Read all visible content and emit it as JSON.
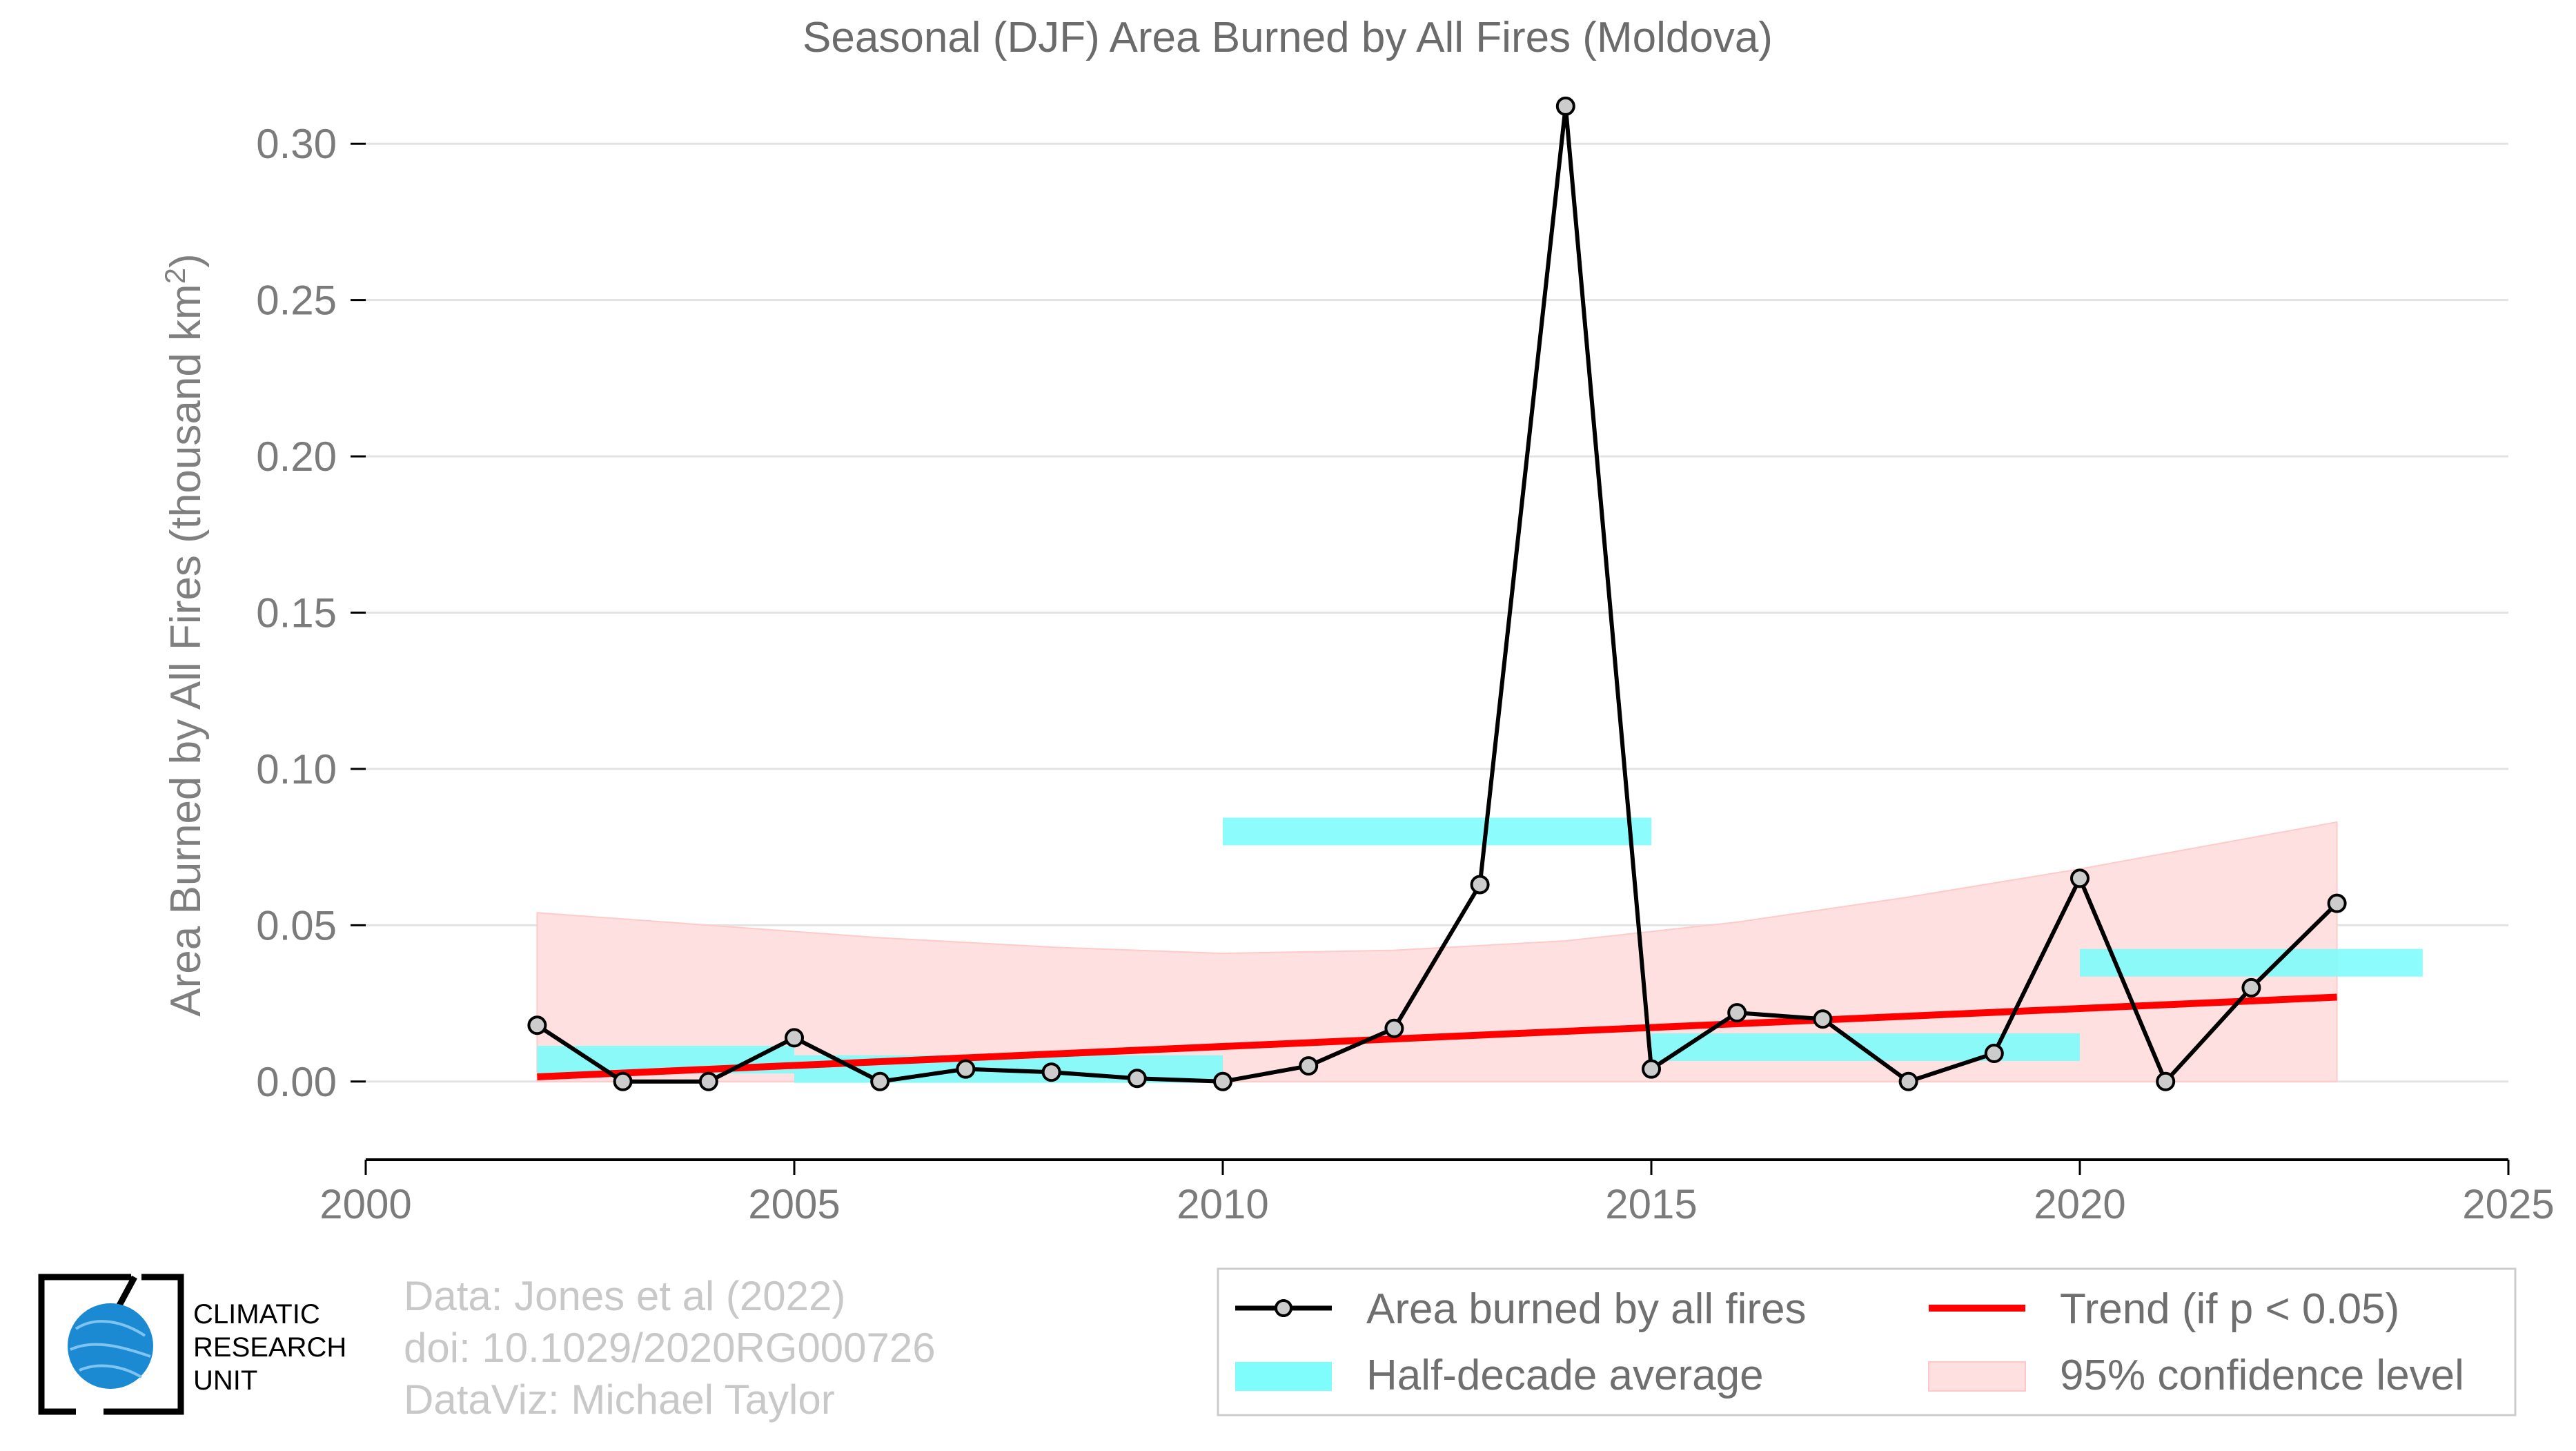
{
  "chart_data": {
    "type": "line",
    "title": "Seasonal (DJF) Area Burned by All Fires (Moldova)",
    "ylabel": "Area Burned by All Fires (thousand km²)",
    "xlim": [
      2000,
      2025
    ],
    "ylim": [
      -0.025,
      0.325
    ],
    "xticks": [
      "2000",
      "2005",
      "2010",
      "2015",
      "2020",
      "2025"
    ],
    "yticks": [
      "0.00",
      "0.05",
      "0.10",
      "0.15",
      "0.20",
      "0.25",
      "0.30"
    ],
    "grid": "horizontal",
    "series": [
      {
        "name": "Area burned by all fires",
        "color": "#000000",
        "x": [
          2002,
          2003,
          2004,
          2005,
          2006,
          2007,
          2008,
          2009,
          2010,
          2011,
          2012,
          2013,
          2014,
          2015,
          2016,
          2017,
          2018,
          2019,
          2020,
          2021,
          2022,
          2023
        ],
        "y": [
          0.018,
          0.0,
          0.0,
          0.014,
          0.0,
          0.004,
          0.003,
          0.001,
          0.0,
          0.005,
          0.017,
          0.063,
          0.312,
          0.004,
          0.022,
          0.02,
          0.0,
          0.009,
          0.065,
          0.0,
          0.03,
          0.057
        ]
      }
    ],
    "half_decade_average": {
      "name": "Half-decade average",
      "color": "#7ffcfc",
      "segments": [
        {
          "x0": 2002,
          "x1": 2005,
          "y": 0.007
        },
        {
          "x0": 2005,
          "x1": 2010,
          "y": 0.004
        },
        {
          "x0": 2010,
          "x1": 2015,
          "y": 0.08
        },
        {
          "x0": 2015,
          "x1": 2020,
          "y": 0.011
        },
        {
          "x0": 2020,
          "x1": 2024,
          "y": 0.038
        }
      ]
    },
    "trend": {
      "name": "Trend (if p < 0.05)",
      "color": "#ff0000",
      "x": [
        2002,
        2023
      ],
      "y": [
        0.0015,
        0.027
      ]
    },
    "confidence": {
      "name": "95% confidence level",
      "color": "#ffe0e0",
      "x": [
        2002,
        2004,
        2006,
        2008,
        2010,
        2012,
        2014,
        2016,
        2018,
        2020,
        2022,
        2023
      ],
      "upper": [
        0.054,
        0.05,
        0.046,
        0.043,
        0.041,
        0.042,
        0.045,
        0.051,
        0.059,
        0.068,
        0.078,
        0.083
      ],
      "lower": [
        0,
        0,
        0,
        0,
        0,
        0,
        0,
        0,
        0,
        0,
        0,
        0
      ]
    }
  },
  "legend": {
    "items": [
      "Area burned by all fires",
      "Trend (if p < 0.05)",
      "Half-decade average",
      "95% confidence level"
    ]
  },
  "credits": {
    "line1": "Data: Jones et al (2022)",
    "line2": "doi: 10.1029/2020RG000726",
    "line3": "DataViz: Michael Taylor"
  },
  "logo": {
    "line1": "CLIMATIC",
    "line2": "RESEARCH",
    "line3": "UNIT"
  }
}
